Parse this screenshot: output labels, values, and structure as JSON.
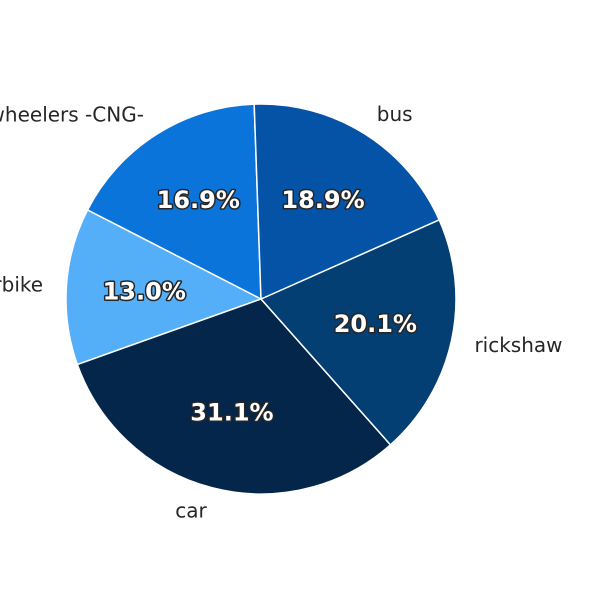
{
  "chart_data": {
    "type": "pie",
    "categories": [
      "three wheelers -CNG-",
      "motorbike",
      "car",
      "rickshaw",
      "bus"
    ],
    "values": [
      16.9,
      13.0,
      31.1,
      20.1,
      18.9
    ],
    "value_labels": [
      "16.9%",
      "13.0%",
      "31.1%",
      "20.1%",
      "18.9%"
    ],
    "colors": [
      "#0a74da",
      "#54aef8",
      "#03264a",
      "#033f73",
      "#0453a6"
    ],
    "start_angle_deg": 92,
    "direction": "counterclockwise",
    "slice_edge_color": "#ffffff",
    "title": ""
  }
}
